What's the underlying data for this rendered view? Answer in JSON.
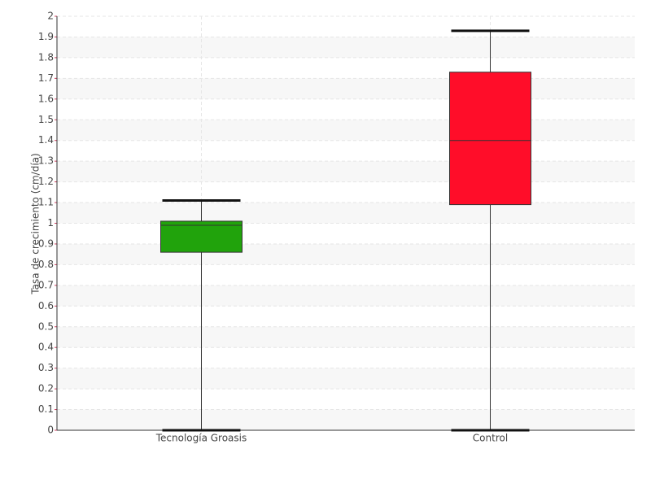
{
  "chart_data": {
    "type": "box",
    "y_label": "Tasa de crecimiento (cm/día)",
    "categories": [
      "Tecnología Groasis",
      "Control"
    ],
    "colors": [
      "#21a30c",
      "#ff0d29"
    ],
    "whisker_low": [
      0,
      0
    ],
    "q1": [
      0.86,
      1.09
    ],
    "median": [
      0.99,
      1.4
    ],
    "q3": [
      1.01,
      1.73
    ],
    "whisker_high": [
      1.11,
      1.93
    ],
    "ylim": [
      0,
      2
    ],
    "yticks": [
      0,
      0.1,
      0.2,
      0.3,
      0.4,
      0.5,
      0.6,
      0.7,
      0.8,
      0.9,
      1,
      1.1,
      1.2,
      1.3,
      1.4,
      1.5,
      1.6,
      1.7,
      1.8,
      1.9,
      2
    ],
    "grid": true
  }
}
